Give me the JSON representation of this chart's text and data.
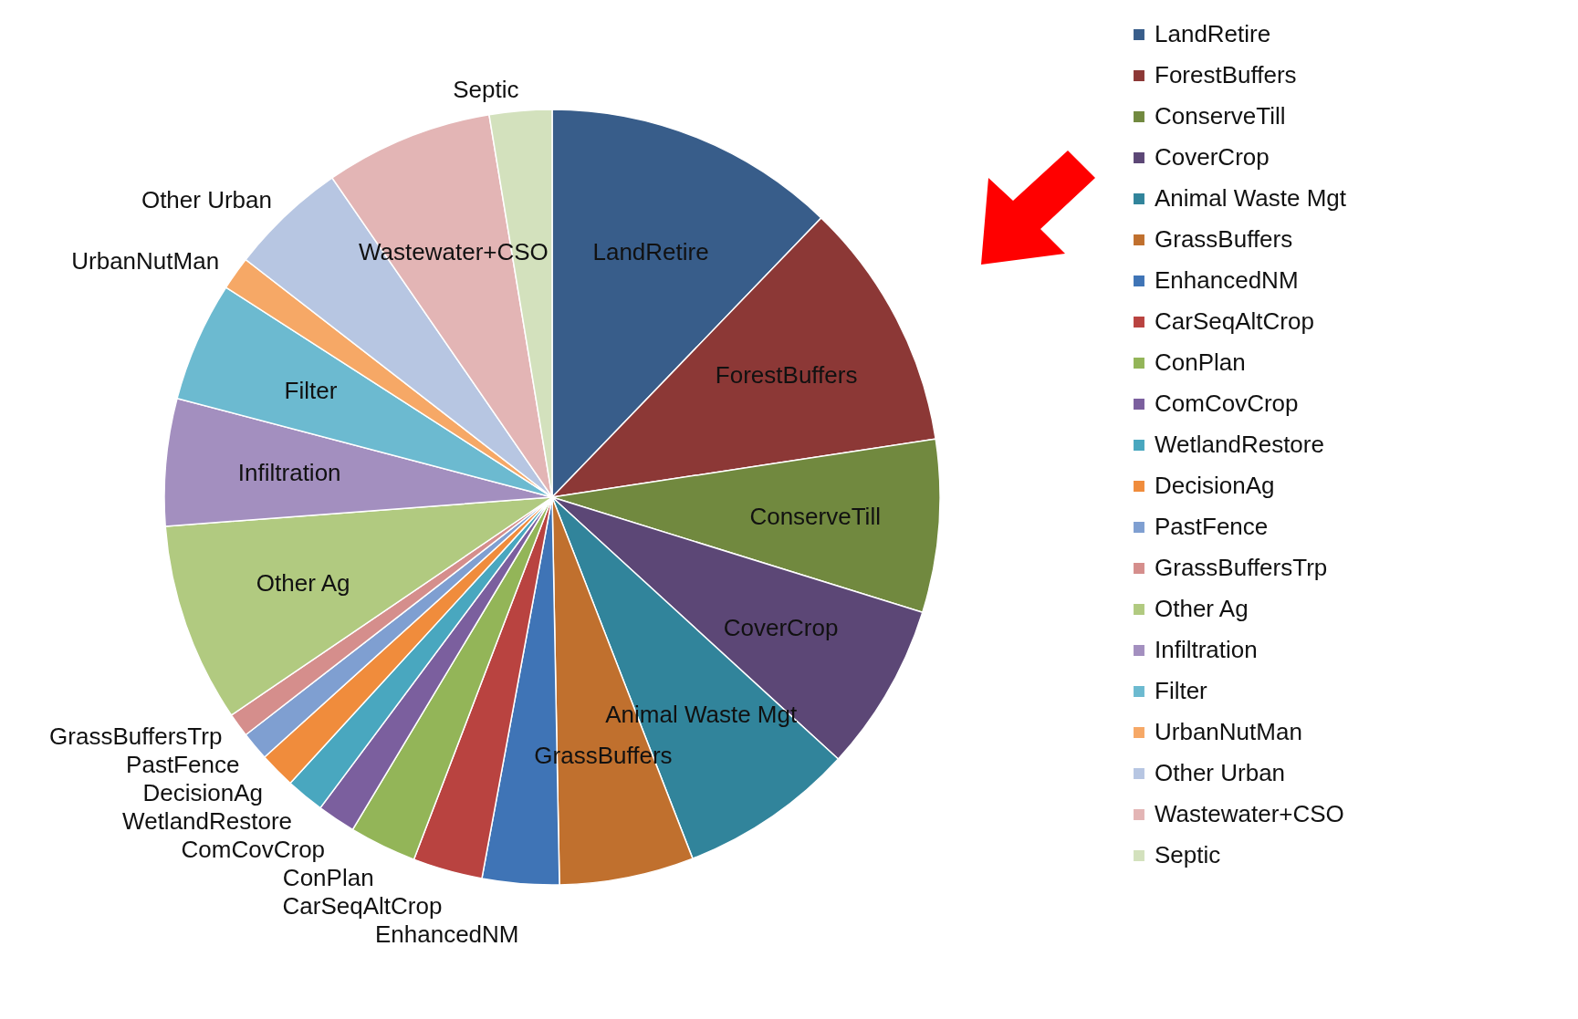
{
  "chart_data": {
    "type": "pie",
    "categories": [
      "LandRetire",
      "ForestBuffers",
      "ConserveTill",
      "CoverCrop",
      "Animal Waste Mgt",
      "GrassBuffers",
      "EnhancedNM",
      "CarSeqAltCrop",
      "ConPlan",
      "ComCovCrop",
      "WetlandRestore",
      "DecisionAg",
      "PastFence",
      "GrassBuffersTrp",
      "Other Ag",
      "Infiltration",
      "Filter",
      "UrbanNutMan",
      "Other Urban",
      "Wastewater+CSO",
      "Septic"
    ],
    "values": [
      12.2,
      10.4,
      7.2,
      7.0,
      7.3,
      5.6,
      3.2,
      2.9,
      2.8,
      1.6,
      1.6,
      1.5,
      1.2,
      1.0,
      8.3,
      5.3,
      5.0,
      1.4,
      4.9,
      7.0,
      2.6
    ],
    "colors": [
      "#385d8a",
      "#8c3836",
      "#71893f",
      "#5c4776",
      "#31849b",
      "#c0702e",
      "#3f74b6",
      "#b94340",
      "#93b558",
      "#7b5f9e",
      "#49a7bf",
      "#f08c3c",
      "#7f9fd1",
      "#d58e8c",
      "#b1ca80",
      "#a38fbf",
      "#6cbad0",
      "#f6a866",
      "#b7c6e2",
      "#e3b5b5",
      "#d3e1bd"
    ],
    "legend": "right"
  }
}
